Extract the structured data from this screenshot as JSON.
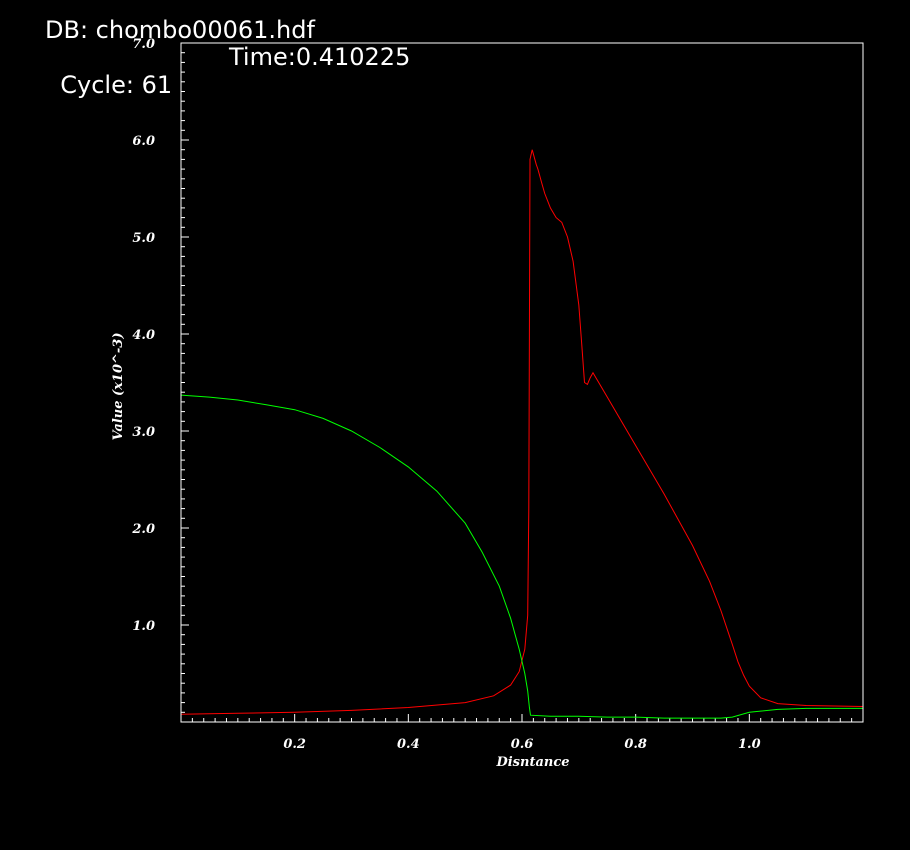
{
  "header": {
    "db_label": "DB: chombo00061.hdf",
    "cycle_label": "Cycle: 61",
    "time_label": "Time:0.410225"
  },
  "chart_data": {
    "type": "line",
    "title": "",
    "xlabel": "Disntance",
    "ylabel": "Value (x10^-3)",
    "xlim": [
      0.0,
      1.2
    ],
    "ylim": [
      0.0,
      7.0
    ],
    "grid": false,
    "x_ticks": [
      {
        "value": 0.2,
        "label": "0.2"
      },
      {
        "value": 0.4,
        "label": "0.4"
      },
      {
        "value": 0.6,
        "label": "0.6"
      },
      {
        "value": 0.8,
        "label": "0.8"
      },
      {
        "value": 1.0,
        "label": "1.0"
      }
    ],
    "y_ticks": [
      {
        "value": 1.0,
        "label": "1.0"
      },
      {
        "value": 2.0,
        "label": "2.0"
      },
      {
        "value": 3.0,
        "label": "3.0"
      },
      {
        "value": 4.0,
        "label": "4.0"
      },
      {
        "value": 5.0,
        "label": "5.0"
      },
      {
        "value": 6.0,
        "label": "6.0"
      },
      {
        "value": 7.0,
        "label": "7.0"
      }
    ],
    "series": [
      {
        "color": "#ff0000",
        "points": [
          [
            0.0,
            0.08
          ],
          [
            0.1,
            0.09
          ],
          [
            0.2,
            0.1
          ],
          [
            0.3,
            0.12
          ],
          [
            0.4,
            0.15
          ],
          [
            0.5,
            0.2
          ],
          [
            0.55,
            0.27
          ],
          [
            0.58,
            0.38
          ],
          [
            0.595,
            0.52
          ],
          [
            0.605,
            0.75
          ],
          [
            0.61,
            1.1
          ],
          [
            0.612,
            2.2
          ],
          [
            0.613,
            4.0
          ],
          [
            0.614,
            5.8
          ],
          [
            0.618,
            5.9
          ],
          [
            0.625,
            5.75
          ],
          [
            0.628,
            5.7
          ],
          [
            0.635,
            5.55
          ],
          [
            0.64,
            5.45
          ],
          [
            0.65,
            5.3
          ],
          [
            0.66,
            5.2
          ],
          [
            0.67,
            5.15
          ],
          [
            0.68,
            5.0
          ],
          [
            0.69,
            4.75
          ],
          [
            0.7,
            4.3
          ],
          [
            0.705,
            3.9
          ],
          [
            0.71,
            3.5
          ],
          [
            0.715,
            3.48
          ],
          [
            0.72,
            3.55
          ],
          [
            0.725,
            3.6
          ],
          [
            0.73,
            3.55
          ],
          [
            0.75,
            3.35
          ],
          [
            0.8,
            2.85
          ],
          [
            0.85,
            2.35
          ],
          [
            0.9,
            1.82
          ],
          [
            0.93,
            1.45
          ],
          [
            0.95,
            1.15
          ],
          [
            0.97,
            0.8
          ],
          [
            0.98,
            0.62
          ],
          [
            0.99,
            0.48
          ],
          [
            1.0,
            0.37
          ],
          [
            1.02,
            0.25
          ],
          [
            1.05,
            0.19
          ],
          [
            1.1,
            0.17
          ],
          [
            1.2,
            0.16
          ]
        ]
      },
      {
        "color": "#00ff00",
        "points": [
          [
            0.0,
            3.37
          ],
          [
            0.05,
            3.35
          ],
          [
            0.1,
            3.32
          ],
          [
            0.15,
            3.27
          ],
          [
            0.2,
            3.22
          ],
          [
            0.25,
            3.13
          ],
          [
            0.3,
            3.0
          ],
          [
            0.35,
            2.83
          ],
          [
            0.4,
            2.63
          ],
          [
            0.45,
            2.38
          ],
          [
            0.5,
            2.05
          ],
          [
            0.53,
            1.75
          ],
          [
            0.56,
            1.4
          ],
          [
            0.58,
            1.07
          ],
          [
            0.595,
            0.75
          ],
          [
            0.605,
            0.5
          ],
          [
            0.61,
            0.32
          ],
          [
            0.613,
            0.15
          ],
          [
            0.615,
            0.07
          ],
          [
            0.65,
            0.06
          ],
          [
            0.7,
            0.06
          ],
          [
            0.75,
            0.05
          ],
          [
            0.8,
            0.05
          ],
          [
            0.85,
            0.04
          ],
          [
            0.9,
            0.04
          ],
          [
            0.95,
            0.04
          ],
          [
            0.97,
            0.05
          ],
          [
            1.0,
            0.1
          ],
          [
            1.05,
            0.13
          ],
          [
            1.1,
            0.14
          ],
          [
            1.2,
            0.14
          ]
        ]
      }
    ]
  }
}
